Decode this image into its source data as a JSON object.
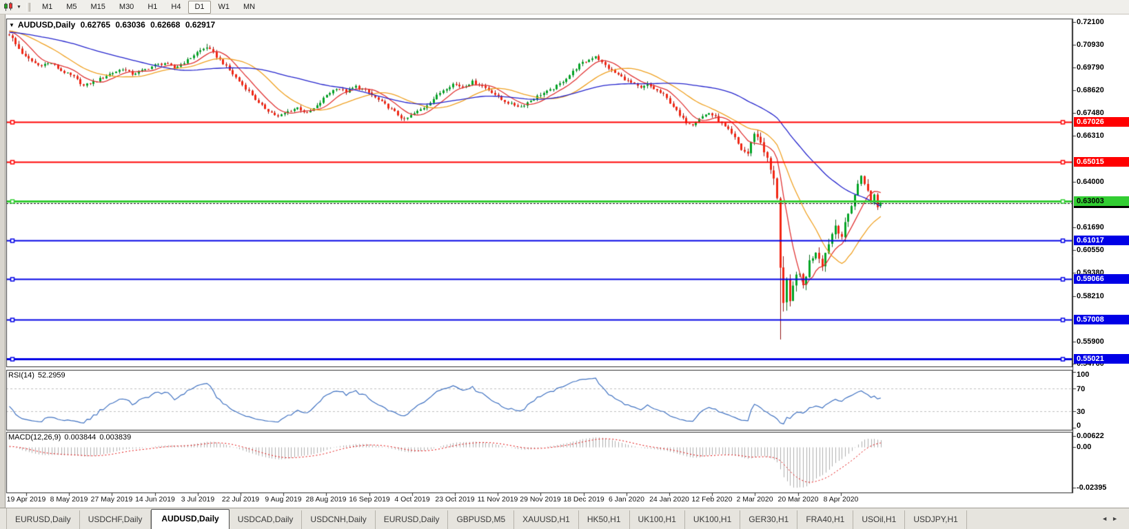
{
  "icons": {
    "caret_down": "▼",
    "toolbar_caret": "▼",
    "tab_prev": "◄",
    "tab_next": "►"
  },
  "toolbar": {
    "timeframes": [
      {
        "label": "M1",
        "active": false
      },
      {
        "label": "M5",
        "active": false
      },
      {
        "label": "M15",
        "active": false
      },
      {
        "label": "M30",
        "active": false
      },
      {
        "label": "H1",
        "active": false
      },
      {
        "label": "H4",
        "active": false
      },
      {
        "label": "D1",
        "active": true
      },
      {
        "label": "W1",
        "active": false
      },
      {
        "label": "MN",
        "active": false
      }
    ]
  },
  "chart": {
    "title": {
      "symbol": "AUDUSD,Daily",
      "open": "0.62765",
      "high": "0.63036",
      "low": "0.62668",
      "close": "0.62917"
    },
    "price_axis": {
      "ticks": [
        {
          "label": "0.72100",
          "value": 0.721
        },
        {
          "label": "0.70930",
          "value": 0.7093
        },
        {
          "label": "0.69790",
          "value": 0.6979
        },
        {
          "label": "0.68620",
          "value": 0.6862
        },
        {
          "label": "0.67480",
          "value": 0.6748
        },
        {
          "label": "0.66310",
          "value": 0.6631
        },
        {
          "label": "0.64000",
          "value": 0.64
        },
        {
          "label": "0.61690",
          "value": 0.6169
        },
        {
          "label": "0.60550",
          "value": 0.6055
        },
        {
          "label": "0.59380",
          "value": 0.5938
        },
        {
          "label": "0.58210",
          "value": 0.5821
        },
        {
          "label": "0.55900",
          "value": 0.559
        },
        {
          "label": "0.54760",
          "value": 0.5476
        }
      ]
    },
    "lines": [
      {
        "label": "0.62917",
        "price": 0.62917,
        "color": "#000000",
        "text_color": "#FFFFFF",
        "width": 1,
        "style": "dash",
        "handles": false
      },
      {
        "label": "0.67026",
        "price": 0.67026,
        "color": "#FF0000",
        "text_color": "#FFFFFF",
        "width": 2,
        "style": "solid",
        "handles": true
      },
      {
        "label": "0.65015",
        "price": 0.65015,
        "color": "#FF0000",
        "text_color": "#FFFFFF",
        "width": 2,
        "style": "solid",
        "handles": true
      },
      {
        "label": "0.61017",
        "price": 0.61017,
        "color": "#0000E6",
        "text_color": "#FFFFFF",
        "width": 2,
        "style": "solid",
        "handles": true
      },
      {
        "label": "0.59066",
        "price": 0.59066,
        "color": "#0000E6",
        "text_color": "#FFFFFF",
        "width": 2,
        "style": "solid",
        "handles": true
      },
      {
        "label": "0.57008",
        "price": 0.57008,
        "color": "#0000E6",
        "text_color": "#FFFFFF",
        "width": 2,
        "style": "solid",
        "handles": true
      },
      {
        "label": "0.55021",
        "price": 0.55021,
        "color": "#0000E6",
        "text_color": "#FFFFFF",
        "width": 3,
        "style": "solid",
        "handles": true
      },
      {
        "label": "0.63003",
        "price": 0.63003,
        "color": "#32CD32",
        "text_color": "#000000",
        "width": 3,
        "style": "solid",
        "handles": true
      }
    ],
    "date_axis": {
      "labels": [
        "19 Apr 2019",
        "8 May 2019",
        "27 May 2019",
        "14 Jun 2019",
        "3 Jul 2019",
        "22 Jul 2019",
        "9 Aug 2019",
        "28 Aug 2019",
        "16 Sep 2019",
        "4 Oct 2019",
        "23 Oct 2019",
        "11 Nov 2019",
        "29 Nov 2019",
        "18 Dec 2019",
        "6 Jan 2020",
        "24 Jan 2020",
        "12 Feb 2020",
        "2 Mar 2020",
        "20 Mar 2020",
        "8 Apr 2020"
      ]
    }
  },
  "rsi": {
    "label": "RSI(14)",
    "value": "52.2959",
    "scale": [
      {
        "label": "100",
        "v": 100
      },
      {
        "label": "70",
        "v": 70
      },
      {
        "label": "30",
        "v": 30
      },
      {
        "label": "0",
        "v": 0
      }
    ]
  },
  "macd": {
    "label": "MACD(12,26,9)",
    "value_main": "0.003844",
    "value_signal": "0.003839",
    "scale": [
      {
        "label": "0.00622",
        "v": 0.00622
      },
      {
        "label": "0.00",
        "v": 0
      },
      {
        "label": "-0.02395",
        "v": -0.02395
      }
    ]
  },
  "tabs": {
    "items": [
      {
        "label": "EURUSD,Daily",
        "active": false
      },
      {
        "label": "USDCHF,Daily",
        "active": false
      },
      {
        "label": "AUDUSD,Daily",
        "active": true
      },
      {
        "label": "USDCAD,Daily",
        "active": false
      },
      {
        "label": "USDCNH,Daily",
        "active": false
      },
      {
        "label": "EURUSD,Daily",
        "active": false
      },
      {
        "label": "GBPUSD,M5",
        "active": false
      },
      {
        "label": "XAUUSD,H1",
        "active": false
      },
      {
        "label": "HK50,H1",
        "active": false
      },
      {
        "label": "UK100,H1",
        "active": false
      },
      {
        "label": "UK100,H1",
        "active": false
      },
      {
        "label": "GER30,H1",
        "active": false
      },
      {
        "label": "FRA40,H1",
        "active": false
      },
      {
        "label": "USOil,H1",
        "active": false
      },
      {
        "label": "USDJPY,H1",
        "active": false
      }
    ]
  },
  "chart_data": {
    "type": "candlestick+indicators",
    "symbol": "AUDUSD",
    "timeframe": "Daily",
    "visible_range": [
      "19 Apr 2019",
      "23 Apr 2020"
    ],
    "current_ohlc": {
      "open": 0.62765,
      "high": 0.63036,
      "low": 0.62668,
      "close": 0.62917
    },
    "price_scale": {
      "top": 0.7226,
      "bottom": 0.546
    },
    "candle_up_color": "#00A524",
    "candle_down_color": "#F22613",
    "close_anchors": [
      [
        -60,
        0.7185
      ],
      [
        -40,
        0.7145
      ],
      [
        -20,
        0.716
      ],
      [
        -5,
        0.7165
      ],
      [
        0,
        0.715
      ],
      [
        2,
        0.7095
      ],
      [
        5,
        0.703
      ],
      [
        9,
        0.699
      ],
      [
        13,
        0.7
      ],
      [
        16,
        0.6962
      ],
      [
        20,
        0.693
      ],
      [
        23,
        0.6885
      ],
      [
        27,
        0.6912
      ],
      [
        31,
        0.6945
      ],
      [
        35,
        0.6972
      ],
      [
        38,
        0.6945
      ],
      [
        41,
        0.6962
      ],
      [
        45,
        0.699
      ],
      [
        48,
        0.7
      ],
      [
        51,
        0.6975
      ],
      [
        55,
        0.7015
      ],
      [
        58,
        0.7055
      ],
      [
        61,
        0.7082
      ],
      [
        63,
        0.705
      ],
      [
        66,
        0.7
      ],
      [
        69,
        0.6945
      ],
      [
        72,
        0.689
      ],
      [
        75,
        0.684
      ],
      [
        77,
        0.6795
      ],
      [
        80,
        0.676
      ],
      [
        83,
        0.6728
      ],
      [
        86,
        0.6755
      ],
      [
        89,
        0.6775
      ],
      [
        92,
        0.6745
      ],
      [
        95,
        0.6782
      ],
      [
        98,
        0.684
      ],
      [
        101,
        0.6875
      ],
      [
        104,
        0.6855
      ],
      [
        107,
        0.6882
      ],
      [
        110,
        0.6862
      ],
      [
        113,
        0.6825
      ],
      [
        116,
        0.679
      ],
      [
        119,
        0.6752
      ],
      [
        122,
        0.6712
      ],
      [
        125,
        0.6745
      ],
      [
        128,
        0.6775
      ],
      [
        131,
        0.682
      ],
      [
        134,
        0.6865
      ],
      [
        137,
        0.6895
      ],
      [
        140,
        0.688
      ],
      [
        143,
        0.6905
      ],
      [
        146,
        0.6885
      ],
      [
        149,
        0.6855
      ],
      [
        152,
        0.6815
      ],
      [
        155,
        0.6792
      ],
      [
        158,
        0.678
      ],
      [
        161,
        0.6812
      ],
      [
        164,
        0.6842
      ],
      [
        167,
        0.6862
      ],
      [
        170,
        0.6895
      ],
      [
        173,
        0.694
      ],
      [
        176,
        0.6992
      ],
      [
        179,
        0.7018
      ],
      [
        181,
        0.7038
      ],
      [
        183,
        0.7002
      ],
      [
        186,
        0.6962
      ],
      [
        189,
        0.693
      ],
      [
        192,
        0.69
      ],
      [
        195,
        0.6872
      ],
      [
        197,
        0.6892
      ],
      [
        199,
        0.687
      ],
      [
        202,
        0.684
      ],
      [
        205,
        0.6782
      ],
      [
        207,
        0.6732
      ],
      [
        209,
        0.6702
      ],
      [
        211,
        0.6692
      ],
      [
        213,
        0.6722
      ],
      [
        216,
        0.6748
      ],
      [
        218,
        0.6726
      ],
      [
        220,
        0.6692
      ],
      [
        222,
        0.666
      ],
      [
        224,
        0.662
      ],
      [
        226,
        0.6562
      ],
      [
        228,
        0.6542
      ],
      [
        230,
        0.6648
      ],
      [
        232,
        0.66
      ],
      [
        234,
        0.6512
      ],
      [
        236,
        0.6405
      ],
      [
        237,
        0.633
      ],
      [
        238,
        0.598
      ],
      [
        239,
        0.578
      ],
      [
        240,
        0.588
      ],
      [
        241,
        0.5772
      ],
      [
        243,
        0.595
      ],
      [
        245,
        0.5872
      ],
      [
        247,
        0.5992
      ],
      [
        249,
        0.6052
      ],
      [
        251,
        0.5985
      ],
      [
        253,
        0.6092
      ],
      [
        255,
        0.618
      ],
      [
        257,
        0.6125
      ],
      [
        259,
        0.6235
      ],
      [
        261,
        0.6335
      ],
      [
        263,
        0.6432
      ],
      [
        264,
        0.6398
      ],
      [
        265,
        0.6348
      ],
      [
        266,
        0.6295
      ],
      [
        267,
        0.634
      ],
      [
        268,
        0.627
      ],
      [
        269,
        0.62917
      ]
    ],
    "volatility_anchors": [
      [
        -60,
        0.0022
      ],
      [
        0,
        0.003
      ],
      [
        4,
        0.0024
      ],
      [
        8,
        0.0018
      ],
      [
        20,
        0.0016
      ],
      [
        225,
        0.0018
      ],
      [
        230,
        0.0026
      ],
      [
        234,
        0.0036
      ],
      [
        236,
        0.005
      ],
      [
        238,
        0.009
      ],
      [
        240,
        0.007
      ],
      [
        244,
        0.006
      ],
      [
        248,
        0.005
      ],
      [
        252,
        0.0045
      ],
      [
        256,
        0.004
      ],
      [
        262,
        0.0035
      ],
      [
        269,
        0.003
      ]
    ],
    "wick_overrides": {
      "238": {
        "low": 0.56
      },
      "61": {
        "high": 0.7098
      }
    },
    "ma_lines": [
      {
        "type": "sma",
        "period": 8,
        "color": "#E03232"
      },
      {
        "type": "sma",
        "period": 20,
        "color": "#EFA020"
      },
      {
        "type": "sma",
        "period": 50,
        "color": "#2222CC"
      }
    ],
    "rsi": {
      "period": 14,
      "current": 52.2959,
      "levels": [
        70,
        30
      ],
      "line_color": "#3C6FC0"
    },
    "macd": {
      "fast": 12,
      "slow": 26,
      "signal": 9,
      "current_main": 0.003844,
      "current_signal": 0.003839,
      "scale_max": 0.00622,
      "scale_min": -0.02395,
      "histogram_color": "#ADADAD",
      "signal_color": "#E00000"
    }
  }
}
